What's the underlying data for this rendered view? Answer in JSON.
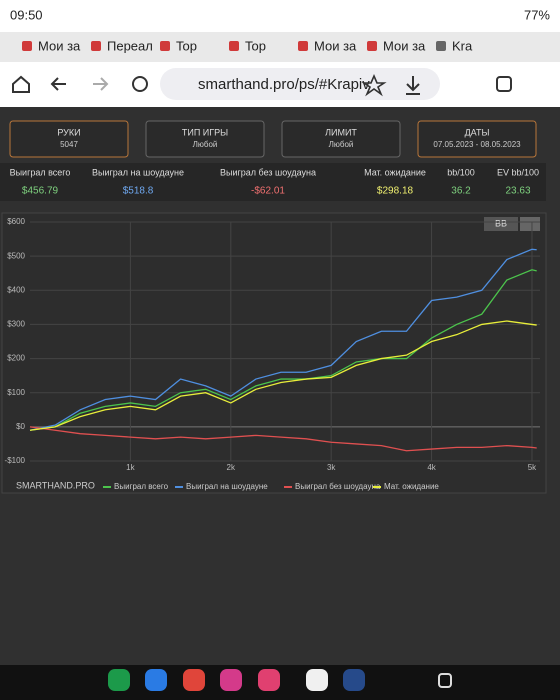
{
  "status_bar": {
    "time": "09:50",
    "battery": "77%"
  },
  "tabs": [
    "Мои за",
    "Переал",
    "Top",
    "Top",
    "Мои за",
    "Мои за",
    "Kra"
  ],
  "address": "smarthand.pro/ps/#Krapiv",
  "filters": [
    {
      "title": "РУКИ",
      "value": "5047"
    },
    {
      "title": "ТИП ИГРЫ",
      "value": "Любой"
    },
    {
      "title": "ЛИМИТ",
      "value": "Любой"
    },
    {
      "title": "ДАТЫ",
      "value": "07.05.2023 - 08.05.2023"
    }
  ],
  "stats": {
    "headers": [
      "Выиграл всего",
      "Выиграл на шоудауне",
      "Выиграл без шоудауна",
      "Мат. ожидание",
      "bb/100",
      "EV bb/100"
    ],
    "values": [
      "$456.79",
      "$518.8",
      "-$62.01",
      "$298.18",
      "36.2",
      "23.63"
    ]
  },
  "chart": {
    "type": "line",
    "button": "BB",
    "logo": "SMARTHAND.PRO",
    "x": [
      0,
      250,
      500,
      750,
      1000,
      1250,
      1500,
      1750,
      2000,
      2250,
      2500,
      2750,
      3000,
      3250,
      3500,
      3750,
      4000,
      4250,
      4500,
      4750,
      5000,
      5047
    ],
    "xlim": [
      0,
      5080
    ],
    "ylim": [
      -100,
      600
    ],
    "xticks": [
      {
        "value": 1000,
        "label": "1k"
      },
      {
        "value": 2000,
        "label": "2k"
      },
      {
        "value": 3000,
        "label": "3k"
      },
      {
        "value": 4000,
        "label": "4k"
      },
      {
        "value": 5000,
        "label": "5k"
      }
    ],
    "yticks": [
      {
        "value": -100,
        "label": "-$100"
      },
      {
        "value": 0,
        "label": "$0"
      },
      {
        "value": 100,
        "label": "$100"
      },
      {
        "value": 200,
        "label": "$200"
      },
      {
        "value": 300,
        "label": "$300"
      },
      {
        "value": 400,
        "label": "$400"
      },
      {
        "value": 500,
        "label": "$500"
      },
      {
        "value": 600,
        "label": "$600"
      }
    ],
    "grid": true,
    "series": [
      {
        "name": "Выиграл всего",
        "color": "#4cc44c",
        "values": [
          -10,
          0,
          40,
          60,
          70,
          60,
          100,
          110,
          80,
          120,
          140,
          140,
          150,
          190,
          200,
          200,
          260,
          300,
          330,
          430,
          460,
          456.79
        ]
      },
      {
        "name": "Выиграл на шоудауне",
        "color": "#4f8fe0",
        "values": [
          -10,
          5,
          50,
          80,
          90,
          80,
          140,
          120,
          90,
          140,
          160,
          160,
          180,
          250,
          280,
          280,
          370,
          380,
          400,
          490,
          520,
          518.8
        ]
      },
      {
        "name": "Выиграл без шоудауна",
        "color": "#e05050",
        "values": [
          0,
          -10,
          -20,
          -25,
          -30,
          -35,
          -30,
          -35,
          -30,
          -25,
          -30,
          -35,
          -45,
          -50,
          -55,
          -70,
          -65,
          -60,
          -60,
          -55,
          -60,
          -62.01
        ]
      },
      {
        "name": "Мат. ожидание",
        "color": "#e8ee3a",
        "values": [
          -10,
          0,
          30,
          50,
          60,
          50,
          90,
          100,
          70,
          110,
          130,
          140,
          145,
          180,
          200,
          210,
          250,
          270,
          300,
          310,
          300,
          298.18
        ]
      }
    ]
  }
}
